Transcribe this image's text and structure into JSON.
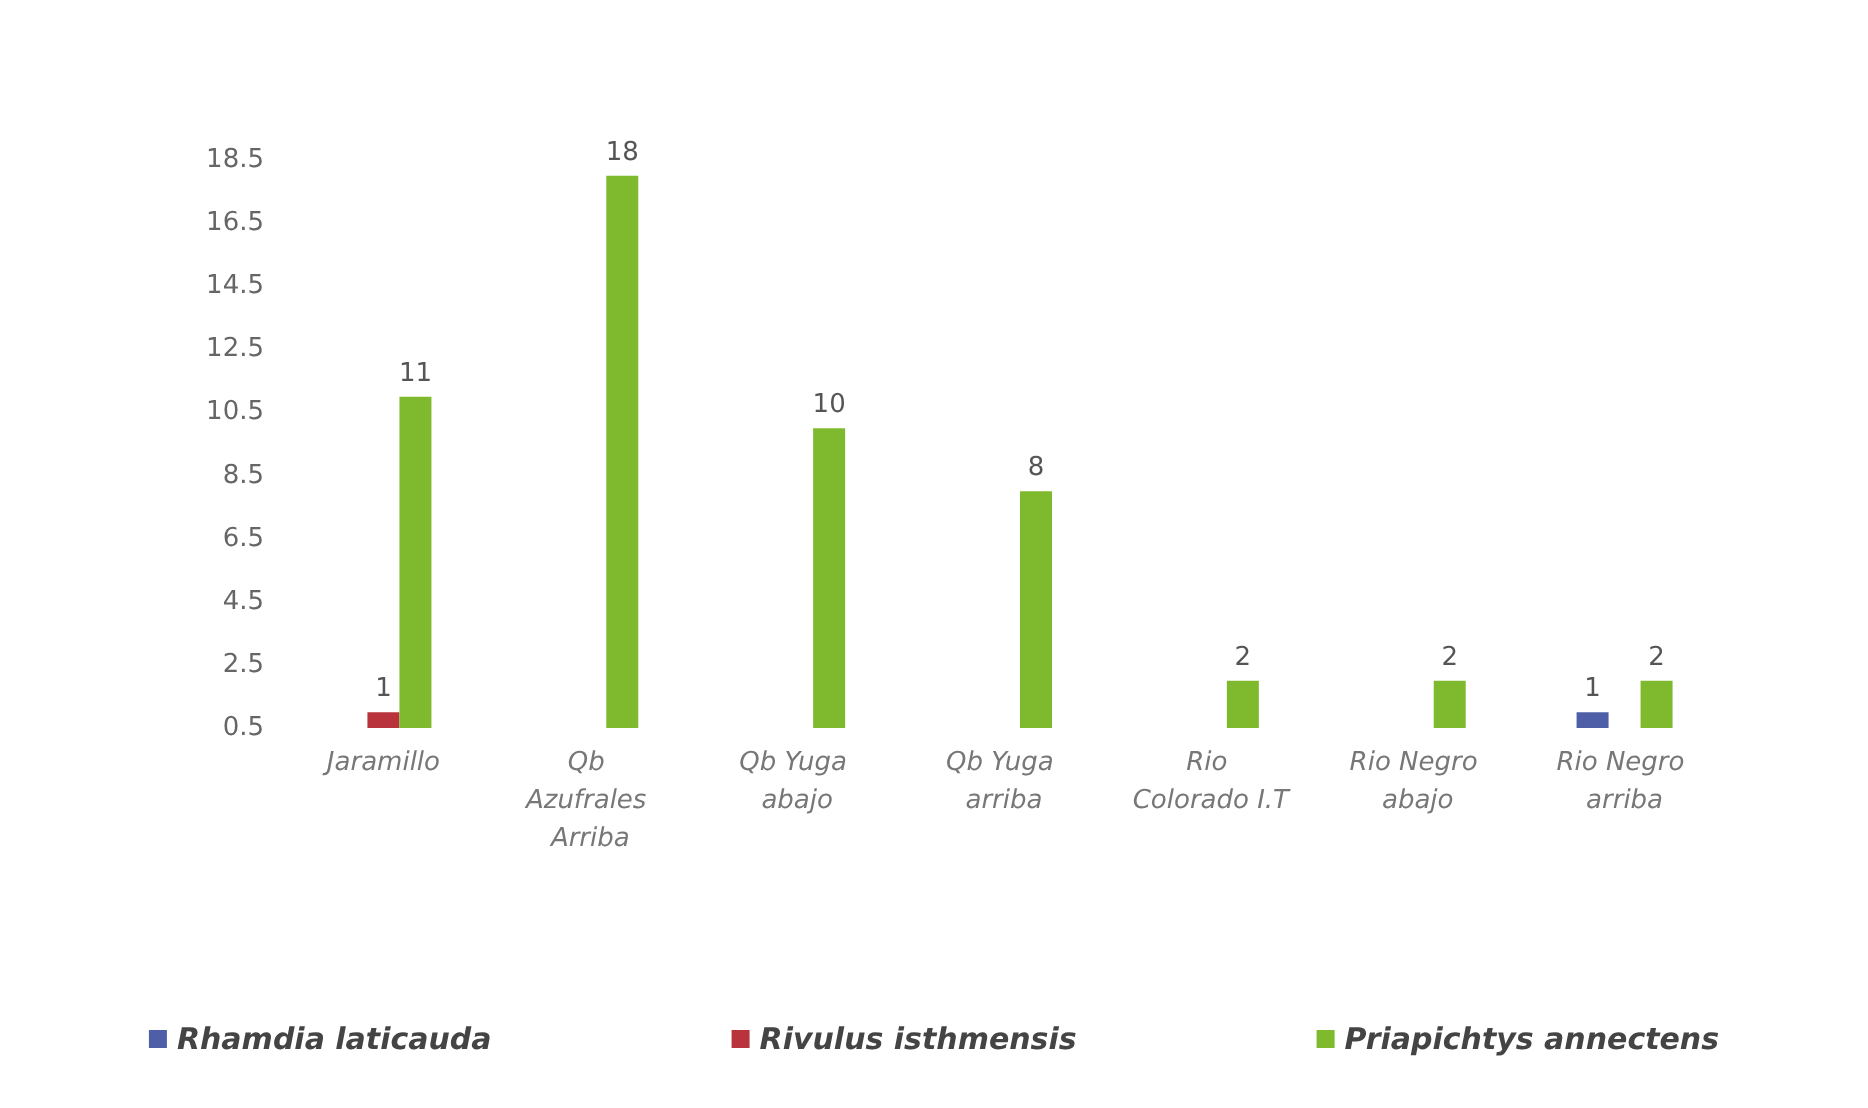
{
  "chart_data": {
    "type": "bar",
    "categories": [
      "Jaramillo",
      "Qb Azufrales Arriba",
      "Qb Yuga abajo",
      "Qb Yuga arriba",
      "Rio Colorado I.T",
      "Rio Negro abajo",
      "Rio Negro arriba"
    ],
    "series": [
      {
        "name": "Rhamdia laticauda",
        "color": "#4e5fa8",
        "values": [
          null,
          null,
          null,
          null,
          null,
          null,
          1
        ]
      },
      {
        "name": "Rivulus isthmensis",
        "color": "#b8333b",
        "values": [
          1,
          null,
          null,
          null,
          null,
          null,
          null
        ]
      },
      {
        "name": "Priapichtys annectens",
        "color": "#7fba2e",
        "values": [
          11,
          18,
          10,
          8,
          2,
          2,
          2
        ]
      }
    ],
    "ylim": [
      0.5,
      18.5
    ],
    "yticks": [
      0.5,
      2.5,
      4.5,
      6.5,
      8.5,
      10.5,
      12.5,
      14.5,
      16.5,
      18.5
    ],
    "grid": false,
    "legend": "bottom",
    "data_labels": true
  }
}
